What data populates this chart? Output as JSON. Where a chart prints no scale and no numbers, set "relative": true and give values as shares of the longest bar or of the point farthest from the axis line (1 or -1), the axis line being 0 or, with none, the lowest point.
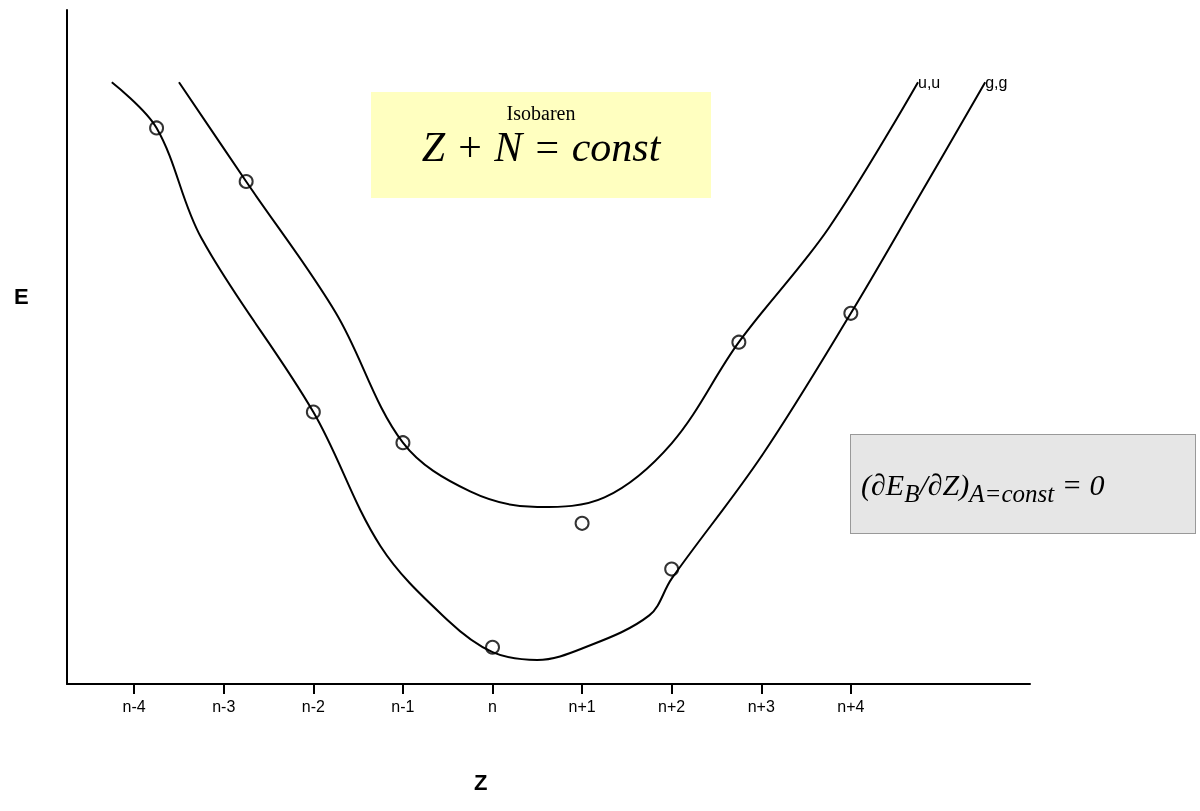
{
  "chart_data": {
    "type": "line",
    "relative": true,
    "xlabel": "Z",
    "ylabel": "E",
    "annotations": [
      "Isobaren",
      "Z + N = const",
      "(∂E$_{B}$/∂Z)$_{A=const}$ = 0"
    ],
    "categories": [
      null,
      null,
      null,
      "n-4",
      null,
      null,
      null,
      "n-3",
      null,
      null,
      null,
      "n-2",
      null,
      null,
      null,
      "n-1",
      null,
      null,
      null,
      "n",
      null,
      null,
      null,
      "n+1",
      null,
      null,
      null,
      "n+2",
      null,
      null,
      null,
      "n+3",
      null,
      null,
      null,
      "n+4",
      null,
      null,
      null,
      null,
      null,
      null,
      null,
      null
    ],
    "grid": false,
    "legend": false,
    "line_style": "solid",
    "series": [
      {
        "name": "u,u",
        "color": "#000000",
        "values": [
          null,
          null,
          null,
          null,
          null,
          1.0,
          null,
          null,
          0.835,
          null,
          null,
          null,
          0.617,
          null,
          null,
          0.401,
          null,
          null,
          0.32,
          null,
          null,
          0.294,
          null,
          null,
          0.31,
          null,
          null,
          0.4,
          null,
          null,
          0.568,
          null,
          null,
          null,
          0.757,
          null,
          null,
          null,
          1.0,
          null,
          null,
          null,
          null,
          null
        ]
      },
      {
        "name": "g,g",
        "color": "#000000",
        "values": [
          null,
          null,
          1.0,
          null,
          0.924,
          null,
          0.741,
          null,
          null,
          null,
          null,
          0.452,
          null,
          null,
          0.229,
          null,
          null,
          0.106,
          null,
          0.053,
          null,
          0.04,
          null,
          0.059,
          null,
          null,
          0.114,
          0.175,
          null,
          null,
          null,
          0.378,
          null,
          null,
          null,
          0.616,
          null,
          null,
          0.807,
          null,
          null,
          1.0,
          null,
          null
        ]
      },
      {
        "type": "scatter",
        "marker": "circle",
        "color": "#000000",
        "values": [
          null,
          null,
          null,
          null,
          null,
          null,
          null,
          null,
          0.835,
          null,
          null,
          null,
          null,
          null,
          null,
          0.401,
          null,
          null,
          null,
          null,
          null,
          null,
          null,
          0.267,
          null,
          null,
          null,
          null,
          null,
          null,
          0.568,
          null,
          null,
          null,
          null,
          null,
          null,
          null,
          null,
          null,
          null,
          null,
          null,
          null
        ]
      },
      {
        "type": "scatter",
        "marker": "circle",
        "color": "#000000",
        "values": [
          null,
          null,
          null,
          null,
          0.924,
          null,
          null,
          null,
          null,
          null,
          null,
          0.452,
          null,
          null,
          null,
          null,
          null,
          null,
          null,
          0.061,
          null,
          null,
          null,
          null,
          null,
          null,
          null,
          0.191,
          null,
          null,
          null,
          null,
          null,
          null,
          null,
          0.616,
          null,
          null,
          null,
          null,
          null,
          null,
          null,
          null
        ]
      }
    ]
  }
}
